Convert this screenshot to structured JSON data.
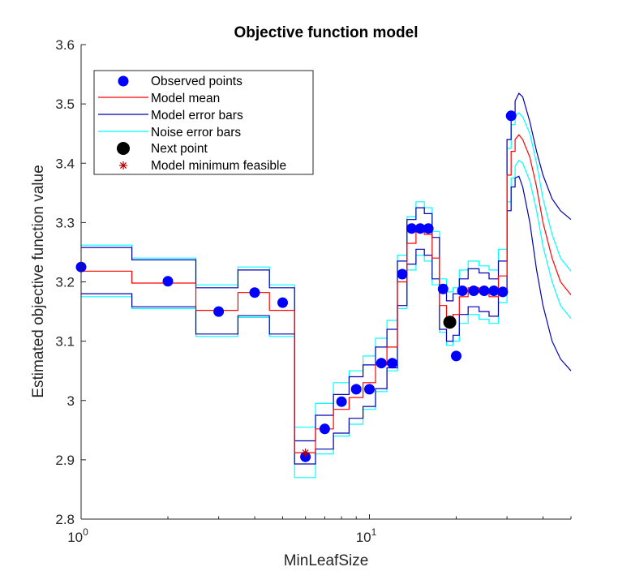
{
  "chart_data": {
    "type": "line",
    "title": "Objective function model",
    "xlabel": "MinLeafSize",
    "ylabel": "Estimated objective function value",
    "x_scale": "log",
    "xlim": [
      1,
      50
    ],
    "ylim": [
      2.8,
      3.6
    ],
    "y_ticks": [
      "2.8",
      "2.9",
      "3",
      "3.1",
      "3.2",
      "3.3",
      "3.4",
      "3.5",
      "3.6"
    ],
    "x_ticks": [
      {
        "base": "10",
        "exp": "0",
        "value": 1
      },
      {
        "base": "10",
        "exp": "1",
        "value": 10
      }
    ],
    "grid": false,
    "legend_position": "top-left",
    "legend": [
      {
        "label": "Observed points",
        "marker": "dot",
        "color": "#0000ff"
      },
      {
        "label": "Model mean",
        "marker": "line",
        "color": "#ff0000"
      },
      {
        "label": "Model error bars",
        "marker": "line",
        "color": "#0000b3"
      },
      {
        "label": "Noise error bars",
        "marker": "line",
        "color": "#00ffff"
      },
      {
        "label": "Next point",
        "marker": "dot",
        "color": "#000000"
      },
      {
        "label": "Model minimum feasible",
        "marker": "star",
        "color": "#b30000"
      }
    ],
    "observed_points": [
      {
        "x": 1,
        "y": 3.225
      },
      {
        "x": 2,
        "y": 3.201
      },
      {
        "x": 3,
        "y": 3.15
      },
      {
        "x": 4,
        "y": 3.182
      },
      {
        "x": 5,
        "y": 3.165
      },
      {
        "x": 6,
        "y": 2.905
      },
      {
        "x": 7,
        "y": 2.952
      },
      {
        "x": 8,
        "y": 2.998
      },
      {
        "x": 9,
        "y": 3.019
      },
      {
        "x": 10,
        "y": 3.019
      },
      {
        "x": 11,
        "y": 3.063
      },
      {
        "x": 12,
        "y": 3.063
      },
      {
        "x": 13,
        "y": 3.213
      },
      {
        "x": 14,
        "y": 3.29
      },
      {
        "x": 15,
        "y": 3.29
      },
      {
        "x": 16,
        "y": 3.29
      },
      {
        "x": 18,
        "y": 3.188
      },
      {
        "x": 20,
        "y": 3.075
      },
      {
        "x": 21,
        "y": 3.185
      },
      {
        "x": 23,
        "y": 3.185
      },
      {
        "x": 25,
        "y": 3.185
      },
      {
        "x": 27,
        "y": 3.185
      },
      {
        "x": 29,
        "y": 3.183
      },
      {
        "x": 31,
        "y": 3.48
      }
    ],
    "next_point": {
      "x": 19,
      "y": 3.132
    },
    "model_minimum_feasible": {
      "x": 6,
      "y": 2.912
    },
    "model_mean": [
      [
        1,
        3.218
      ],
      [
        1.5,
        3.218
      ],
      [
        1.5,
        3.198
      ],
      [
        2.5,
        3.198
      ],
      [
        2.5,
        3.152
      ],
      [
        3.5,
        3.152
      ],
      [
        3.5,
        3.182
      ],
      [
        4.5,
        3.182
      ],
      [
        4.5,
        3.152
      ],
      [
        5.5,
        3.152
      ],
      [
        5.5,
        2.912
      ],
      [
        6.5,
        2.912
      ],
      [
        6.5,
        2.952
      ],
      [
        7.5,
        2.952
      ],
      [
        7.5,
        2.985
      ],
      [
        8.5,
        2.985
      ],
      [
        8.5,
        3.005
      ],
      [
        9.5,
        3.005
      ],
      [
        9.5,
        3.03
      ],
      [
        10.5,
        3.03
      ],
      [
        10.5,
        3.06
      ],
      [
        11.5,
        3.06
      ],
      [
        11.5,
        3.09
      ],
      [
        12.5,
        3.09
      ],
      [
        12.5,
        3.2
      ],
      [
        13.5,
        3.2
      ],
      [
        13.5,
        3.265
      ],
      [
        14.5,
        3.265
      ],
      [
        14.5,
        3.29
      ],
      [
        15.5,
        3.29
      ],
      [
        15.5,
        3.28
      ],
      [
        16.5,
        3.28
      ],
      [
        16.5,
        3.24
      ],
      [
        17.5,
        3.24
      ],
      [
        17.5,
        3.16
      ],
      [
        18.5,
        3.16
      ],
      [
        18.5,
        3.138
      ],
      [
        19.5,
        3.138
      ],
      [
        19.5,
        3.145
      ],
      [
        20.5,
        3.145
      ],
      [
        20.5,
        3.175
      ],
      [
        22,
        3.175
      ],
      [
        22,
        3.19
      ],
      [
        24,
        3.19
      ],
      [
        24,
        3.182
      ],
      [
        26,
        3.182
      ],
      [
        26,
        3.175
      ],
      [
        28,
        3.175
      ],
      [
        28,
        3.21
      ],
      [
        30,
        3.21
      ],
      [
        30,
        3.38
      ],
      [
        31,
        3.38
      ],
      [
        31,
        3.42
      ],
      [
        32,
        3.42
      ],
      [
        32,
        3.44
      ],
      [
        33,
        3.448
      ],
      [
        34,
        3.44
      ],
      [
        36,
        3.41
      ],
      [
        38,
        3.36
      ],
      [
        40,
        3.3
      ],
      [
        43,
        3.24
      ],
      [
        46,
        3.2
      ],
      [
        50,
        3.178
      ]
    ],
    "model_error_upper": [
      [
        1,
        3.258
      ],
      [
        1.5,
        3.258
      ],
      [
        1.5,
        3.237
      ],
      [
        2.5,
        3.237
      ],
      [
        2.5,
        3.19
      ],
      [
        3.5,
        3.19
      ],
      [
        3.5,
        3.22
      ],
      [
        4.5,
        3.22
      ],
      [
        4.5,
        3.19
      ],
      [
        5.5,
        3.19
      ],
      [
        5.5,
        2.932
      ],
      [
        6.5,
        2.932
      ],
      [
        6.5,
        2.975
      ],
      [
        7.5,
        2.975
      ],
      [
        7.5,
        3.01
      ],
      [
        8.5,
        3.01
      ],
      [
        8.5,
        3.04
      ],
      [
        9.5,
        3.04
      ],
      [
        9.5,
        3.06
      ],
      [
        10.5,
        3.06
      ],
      [
        10.5,
        3.09
      ],
      [
        11.5,
        3.09
      ],
      [
        11.5,
        3.12
      ],
      [
        12.5,
        3.12
      ],
      [
        12.5,
        3.235
      ],
      [
        13.5,
        3.235
      ],
      [
        13.5,
        3.305
      ],
      [
        14.5,
        3.305
      ],
      [
        14.5,
        3.325
      ],
      [
        15.5,
        3.325
      ],
      [
        15.5,
        3.315
      ],
      [
        16.5,
        3.315
      ],
      [
        16.5,
        3.275
      ],
      [
        17.5,
        3.275
      ],
      [
        17.5,
        3.195
      ],
      [
        18.5,
        3.195
      ],
      [
        18.5,
        3.168
      ],
      [
        19.5,
        3.168
      ],
      [
        19.5,
        3.18
      ],
      [
        20.5,
        3.18
      ],
      [
        20.5,
        3.205
      ],
      [
        22,
        3.205
      ],
      [
        22,
        3.222
      ],
      [
        24,
        3.222
      ],
      [
        24,
        3.215
      ],
      [
        26,
        3.215
      ],
      [
        26,
        3.205
      ],
      [
        28,
        3.205
      ],
      [
        28,
        3.235
      ],
      [
        30,
        3.235
      ],
      [
        30,
        3.44
      ],
      [
        31,
        3.44
      ],
      [
        31,
        3.48
      ],
      [
        32,
        3.48
      ],
      [
        32,
        3.505
      ],
      [
        33,
        3.518
      ],
      [
        34,
        3.512
      ],
      [
        36,
        3.47
      ],
      [
        38,
        3.42
      ],
      [
        40,
        3.38
      ],
      [
        43,
        3.34
      ],
      [
        46,
        3.32
      ],
      [
        50,
        3.305
      ]
    ],
    "model_error_lower": [
      [
        1,
        3.18
      ],
      [
        1.5,
        3.18
      ],
      [
        1.5,
        3.158
      ],
      [
        2.5,
        3.158
      ],
      [
        2.5,
        3.112
      ],
      [
        3.5,
        3.112
      ],
      [
        3.5,
        3.143
      ],
      [
        4.5,
        3.143
      ],
      [
        4.5,
        3.112
      ],
      [
        5.5,
        3.112
      ],
      [
        5.5,
        2.893
      ],
      [
        6.5,
        2.893
      ],
      [
        6.5,
        2.918
      ],
      [
        7.5,
        2.918
      ],
      [
        7.5,
        2.945
      ],
      [
        8.5,
        2.945
      ],
      [
        8.5,
        2.97
      ],
      [
        9.5,
        2.97
      ],
      [
        9.5,
        2.99
      ],
      [
        10.5,
        2.99
      ],
      [
        10.5,
        3.02
      ],
      [
        11.5,
        3.02
      ],
      [
        11.5,
        3.055
      ],
      [
        12.5,
        3.055
      ],
      [
        12.5,
        3.16
      ],
      [
        13.5,
        3.16
      ],
      [
        13.5,
        3.23
      ],
      [
        14.5,
        3.23
      ],
      [
        14.5,
        3.255
      ],
      [
        15.5,
        3.255
      ],
      [
        15.5,
        3.245
      ],
      [
        16.5,
        3.245
      ],
      [
        16.5,
        3.205
      ],
      [
        17.5,
        3.205
      ],
      [
        17.5,
        3.12
      ],
      [
        18.5,
        3.12
      ],
      [
        18.5,
        3.1
      ],
      [
        19.5,
        3.1
      ],
      [
        19.5,
        3.11
      ],
      [
        20.5,
        3.11
      ],
      [
        20.5,
        3.145
      ],
      [
        22,
        3.145
      ],
      [
        22,
        3.158
      ],
      [
        24,
        3.158
      ],
      [
        24,
        3.15
      ],
      [
        26,
        3.15
      ],
      [
        26,
        3.142
      ],
      [
        28,
        3.142
      ],
      [
        28,
        3.18
      ],
      [
        30,
        3.18
      ],
      [
        30,
        3.32
      ],
      [
        31,
        3.32
      ],
      [
        31,
        3.36
      ],
      [
        32,
        3.36
      ],
      [
        32,
        3.375
      ],
      [
        33,
        3.378
      ],
      [
        34,
        3.36
      ],
      [
        36,
        3.3
      ],
      [
        38,
        3.22
      ],
      [
        40,
        3.16
      ],
      [
        43,
        3.1
      ],
      [
        46,
        3.07
      ],
      [
        50,
        3.05
      ]
    ],
    "noise_error_upper": [
      [
        1,
        3.262
      ],
      [
        1.5,
        3.262
      ],
      [
        1.5,
        3.24
      ],
      [
        2.5,
        3.24
      ],
      [
        2.5,
        3.195
      ],
      [
        3.5,
        3.195
      ],
      [
        3.5,
        3.225
      ],
      [
        4.5,
        3.225
      ],
      [
        4.5,
        3.195
      ],
      [
        5.5,
        3.195
      ],
      [
        5.5,
        2.955
      ],
      [
        6.5,
        2.955
      ],
      [
        6.5,
        2.995
      ],
      [
        7.5,
        2.995
      ],
      [
        7.5,
        3.03
      ],
      [
        8.5,
        3.03
      ],
      [
        8.5,
        3.05
      ],
      [
        9.5,
        3.05
      ],
      [
        9.5,
        3.075
      ],
      [
        10.5,
        3.075
      ],
      [
        10.5,
        3.105
      ],
      [
        11.5,
        3.105
      ],
      [
        11.5,
        3.135
      ],
      [
        12.5,
        3.135
      ],
      [
        12.5,
        3.245
      ],
      [
        13.5,
        3.245
      ],
      [
        13.5,
        3.31
      ],
      [
        14.5,
        3.31
      ],
      [
        14.5,
        3.335
      ],
      [
        15.5,
        3.335
      ],
      [
        15.5,
        3.325
      ],
      [
        16.5,
        3.325
      ],
      [
        16.5,
        3.285
      ],
      [
        17.5,
        3.285
      ],
      [
        17.5,
        3.205
      ],
      [
        18.5,
        3.205
      ],
      [
        18.5,
        3.183
      ],
      [
        19.5,
        3.183
      ],
      [
        19.5,
        3.19
      ],
      [
        20.5,
        3.19
      ],
      [
        20.5,
        3.22
      ],
      [
        22,
        3.22
      ],
      [
        22,
        3.235
      ],
      [
        24,
        3.235
      ],
      [
        24,
        3.227
      ],
      [
        26,
        3.227
      ],
      [
        26,
        3.22
      ],
      [
        28,
        3.22
      ],
      [
        28,
        3.255
      ],
      [
        30,
        3.255
      ],
      [
        30,
        3.425
      ],
      [
        31,
        3.425
      ],
      [
        31,
        3.465
      ],
      [
        32,
        3.465
      ],
      [
        32,
        3.48
      ],
      [
        33,
        3.485
      ],
      [
        34,
        3.478
      ],
      [
        36,
        3.45
      ],
      [
        38,
        3.4
      ],
      [
        40,
        3.34
      ],
      [
        43,
        3.28
      ],
      [
        46,
        3.24
      ],
      [
        50,
        3.218
      ]
    ],
    "noise_error_lower": [
      [
        1,
        3.175
      ],
      [
        1.5,
        3.175
      ],
      [
        1.5,
        3.155
      ],
      [
        2.5,
        3.155
      ],
      [
        2.5,
        3.108
      ],
      [
        3.5,
        3.108
      ],
      [
        3.5,
        3.14
      ],
      [
        4.5,
        3.14
      ],
      [
        4.5,
        3.108
      ],
      [
        5.5,
        3.108
      ],
      [
        5.5,
        2.87
      ],
      [
        6.5,
        2.87
      ],
      [
        6.5,
        2.91
      ],
      [
        7.5,
        2.91
      ],
      [
        7.5,
        2.94
      ],
      [
        8.5,
        2.94
      ],
      [
        8.5,
        2.96
      ],
      [
        9.5,
        2.96
      ],
      [
        9.5,
        2.985
      ],
      [
        10.5,
        2.985
      ],
      [
        10.5,
        3.015
      ],
      [
        11.5,
        3.015
      ],
      [
        11.5,
        3.05
      ],
      [
        12.5,
        3.05
      ],
      [
        12.5,
        3.155
      ],
      [
        13.5,
        3.155
      ],
      [
        13.5,
        3.22
      ],
      [
        14.5,
        3.22
      ],
      [
        14.5,
        3.245
      ],
      [
        15.5,
        3.245
      ],
      [
        15.5,
        3.235
      ],
      [
        16.5,
        3.235
      ],
      [
        16.5,
        3.195
      ],
      [
        17.5,
        3.195
      ],
      [
        17.5,
        3.115
      ],
      [
        18.5,
        3.115
      ],
      [
        18.5,
        3.093
      ],
      [
        19.5,
        3.093
      ],
      [
        19.5,
        3.1
      ],
      [
        20.5,
        3.1
      ],
      [
        20.5,
        3.13
      ],
      [
        22,
        3.13
      ],
      [
        22,
        3.145
      ],
      [
        24,
        3.145
      ],
      [
        24,
        3.137
      ],
      [
        26,
        3.137
      ],
      [
        26,
        3.13
      ],
      [
        28,
        3.13
      ],
      [
        28,
        3.165
      ],
      [
        30,
        3.165
      ],
      [
        30,
        3.335
      ],
      [
        31,
        3.335
      ],
      [
        31,
        3.375
      ],
      [
        32,
        3.375
      ],
      [
        32,
        3.395
      ],
      [
        33,
        3.405
      ],
      [
        34,
        3.4
      ],
      [
        36,
        3.37
      ],
      [
        38,
        3.32
      ],
      [
        40,
        3.26
      ],
      [
        43,
        3.2
      ],
      [
        46,
        3.16
      ],
      [
        50,
        3.138
      ]
    ]
  }
}
